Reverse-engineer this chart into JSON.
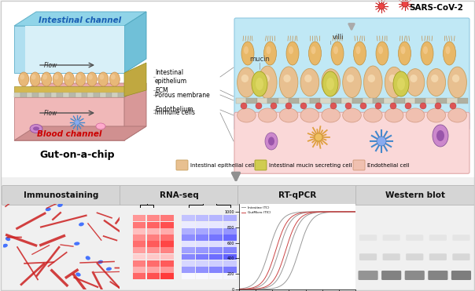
{
  "bg_color": "#f5f5f5",
  "panel_labels": [
    "Immunostaining",
    "RNA-seq",
    "RT-qPCR",
    "Western blot"
  ],
  "sars_cov2_text": "SARS-CoV-2",
  "gut_chip_text": "Gut-on-a-chip",
  "intestinal_channel_text": "Intestinal channel",
  "blood_channel_text": "Blood channel",
  "flow_text": "Flow",
  "annotations": [
    "Intestinal\nepithelium",
    "ECM",
    "Porous membrane",
    "Endothelium",
    "Immune cells"
  ],
  "legend_labels": [
    "Intestinal epithelial cell",
    "Intestinal mucin secreting cell",
    "Endothelial cell"
  ],
  "mucin_text": "mucin",
  "villi_text": "villi",
  "cyan_light": "#b8e8f0",
  "cyan_mid": "#88cce0",
  "cyan_dark": "#60b0c8",
  "pink_light": "#f8d0d0",
  "pink_mid": "#e8a8a8",
  "pink_dark": "#d09090",
  "epithelium_fill": "#e8c090",
  "epithelium_edge": "#c89858",
  "membrane_fill": "#d0d0d0",
  "membrane_dot": "#cc5050",
  "ecm_fill": "#d4b870",
  "mucin_fill": "#c8c840",
  "mucin_edge": "#a0a020",
  "endo_fill": "#f0c0b0",
  "endo_edge": "#c89878",
  "imm_purple": "#cc88cc",
  "imm_orange": "#e8a040",
  "imm_blue": "#4488cc",
  "virus_red": "#dd3333",
  "ann_line_color": "#888888",
  "separator_color": "#909090",
  "bottom_bg": "#f0f0f0",
  "label_bg": "#d8d8d8",
  "immunostain_bg": "#080012"
}
